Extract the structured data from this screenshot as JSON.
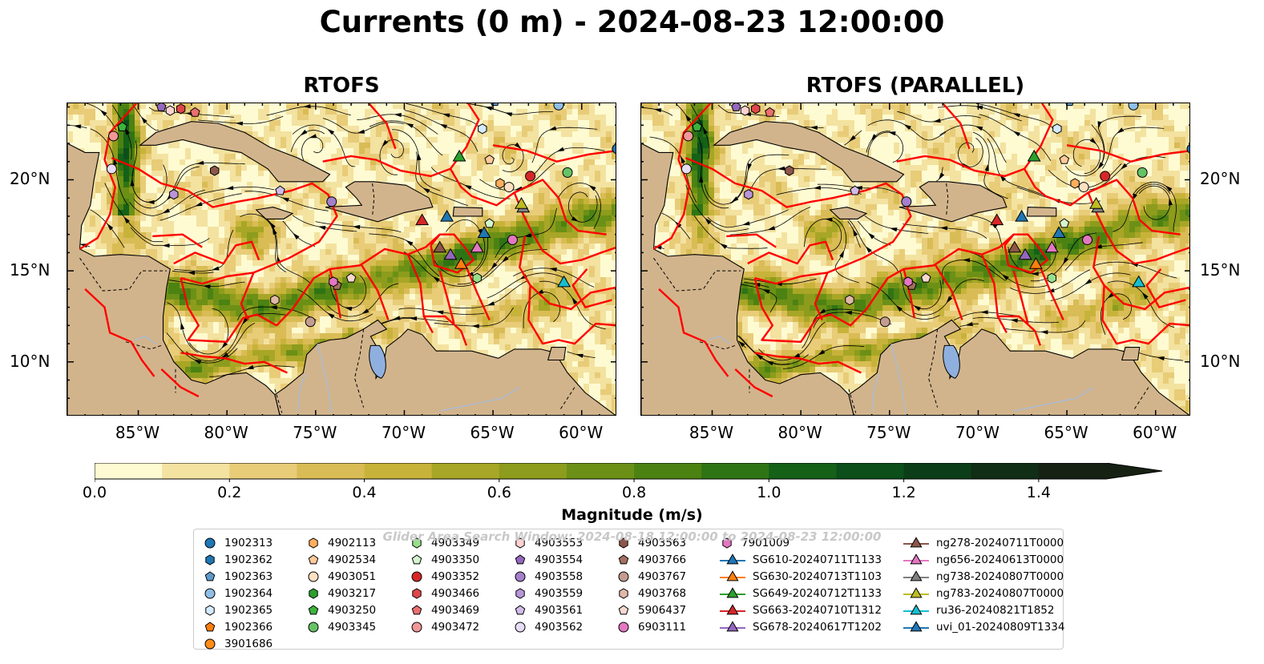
{
  "title": "Currents (0 m) - 2024-08-23 12:00:00",
  "panels": [
    {
      "title": "RTOFS"
    },
    {
      "title": "RTOFS (PARALLEL)"
    }
  ],
  "axes": {
    "lon_ticks": [
      "85°W",
      "80°W",
      "75°W",
      "70°W",
      "65°W",
      "60°W"
    ],
    "lat_ticks": [
      "20°N",
      "15°N",
      "10°N"
    ],
    "lon_range": [
      -89,
      -58
    ],
    "lat_range": [
      7,
      24.2
    ]
  },
  "colorbar": {
    "label": "Magnitude (m/s)",
    "ticks": [
      "0.0",
      "0.2",
      "0.4",
      "0.6",
      "0.8",
      "1.0",
      "1.2",
      "1.4"
    ],
    "range": [
      0,
      1.5
    ],
    "extend": "max"
  },
  "watermark": "Glider Area Search Window: 2024-08-18 12:00:00 to 2024-08-23 12:00:00",
  "colors": {
    "land": "#d2b48c",
    "eez_boundary": "#ff0000",
    "rivers": "#a6bddb",
    "lake": "#8fb0de"
  },
  "legend": {
    "columns": [
      [
        {
          "label": "1902313",
          "marker": "circle",
          "color": "#1f77b4"
        },
        {
          "label": "1902362",
          "marker": "hexagon",
          "color": "#1f77b4"
        },
        {
          "label": "1902363",
          "marker": "pentagon",
          "color": "#5f99cc"
        },
        {
          "label": "1902364",
          "marker": "circle",
          "color": "#8fbfe6"
        },
        {
          "label": "1902365",
          "marker": "hexagon",
          "color": "#d4eaff"
        },
        {
          "label": "1902366",
          "marker": "pentagon",
          "color": "#ff7f0e"
        },
        {
          "label": "3901686",
          "marker": "circle",
          "color": "#ff8c1a"
        }
      ],
      [
        {
          "label": "4902113",
          "marker": "hexagon",
          "color": "#ffae5c"
        },
        {
          "label": "4902534",
          "marker": "pentagon",
          "color": "#ffc999"
        },
        {
          "label": "4903051",
          "marker": "circle",
          "color": "#ffe0c2"
        },
        {
          "label": "4903217",
          "marker": "hexagon",
          "color": "#2ca02c"
        },
        {
          "label": "4903250",
          "marker": "pentagon",
          "color": "#3cb43c"
        },
        {
          "label": "4903345",
          "marker": "circle",
          "color": "#66c266"
        }
      ],
      [
        {
          "label": "4903349",
          "marker": "hexagon",
          "color": "#98df8a"
        },
        {
          "label": "4903350",
          "marker": "pentagon",
          "color": "#d4f5cc"
        },
        {
          "label": "4903352",
          "marker": "circle",
          "color": "#d62728"
        },
        {
          "label": "4903466",
          "marker": "hexagon",
          "color": "#e0474a"
        },
        {
          "label": "4903469",
          "marker": "pentagon",
          "color": "#eb6f70"
        },
        {
          "label": "4903472",
          "marker": "circle",
          "color": "#f29797"
        }
      ],
      [
        {
          "label": "4903553",
          "marker": "hexagon",
          "color": "#ffd1d1"
        },
        {
          "label": "4903554",
          "marker": "pentagon",
          "color": "#9467bd"
        },
        {
          "label": "4903558",
          "marker": "circle",
          "color": "#a47fcc"
        },
        {
          "label": "4903559",
          "marker": "hexagon",
          "color": "#b896d9"
        },
        {
          "label": "4903561",
          "marker": "pentagon",
          "color": "#d1bbe8"
        },
        {
          "label": "4903562",
          "marker": "circle",
          "color": "#e8dcf5"
        }
      ],
      [
        {
          "label": "4903563",
          "marker": "hexagon",
          "color": "#8c564b"
        },
        {
          "label": "4903766",
          "marker": "pentagon",
          "color": "#a4705f"
        },
        {
          "label": "4903767",
          "marker": "circle",
          "color": "#c49c8f"
        },
        {
          "label": "4903768",
          "marker": "hexagon",
          "color": "#e0b8a8"
        },
        {
          "label": "5906437",
          "marker": "pentagon",
          "color": "#f7d9ce"
        },
        {
          "label": "6903111",
          "marker": "circle",
          "color": "#e377c2"
        }
      ],
      [
        {
          "label": "7901009",
          "marker": "hexagon",
          "color": "#e377c2"
        },
        {
          "label": "SG610-20240711T1133",
          "marker": "triangle",
          "color": "#1f77b4"
        },
        {
          "label": "SG630-20240713T1103",
          "marker": "triangle",
          "color": "#ff7f0e"
        },
        {
          "label": "SG649-20240712T1133",
          "marker": "triangle",
          "color": "#2ca02c"
        },
        {
          "label": "SG663-20240710T1312",
          "marker": "triangle",
          "color": "#d62728"
        },
        {
          "label": "SG678-20240617T1202",
          "marker": "triangle",
          "color": "#9467bd"
        }
      ],
      [
        {
          "label": "ng278-20240711T0000",
          "marker": "triangle",
          "color": "#8c564b"
        },
        {
          "label": "ng656-20240613T0000",
          "marker": "triangle",
          "color": "#e377c2"
        },
        {
          "label": "ng738-20240807T0000",
          "marker": "triangle",
          "color": "#7f7f7f"
        },
        {
          "label": "ng783-20240807T0000",
          "marker": "triangle",
          "color": "#bcbd22"
        },
        {
          "label": "ru36-20240821T1852",
          "marker": "triangle",
          "color": "#17becf"
        },
        {
          "label": "uvi_01-20240809T1334",
          "marker": "triangle",
          "color": "#1f77b4"
        }
      ]
    ]
  },
  "map_markers": [
    {
      "label": "1902313",
      "lon": -58.0,
      "lat": 21.7
    },
    {
      "label": "1902363",
      "lon": -64.9,
      "lat": 24.3
    },
    {
      "label": "1902364",
      "lon": -61.3,
      "lat": 24.1
    },
    {
      "label": "1902365",
      "lon": -65.6,
      "lat": 22.8
    },
    {
      "label": "4902534",
      "lon": -65.2,
      "lat": 21.1
    },
    {
      "label": "4903051",
      "lon": -64.1,
      "lat": 19.6
    },
    {
      "label": "4902113",
      "lon": -64.6,
      "lat": 19.8
    },
    {
      "label": "4903250",
      "lon": -85.9,
      "lat": 22.9
    },
    {
      "label": "4903352",
      "lon": -62.9,
      "lat": 20.2
    },
    {
      "label": "4903345",
      "lon": -60.8,
      "lat": 20.4
    },
    {
      "label": "4903350",
      "lon": -65.2,
      "lat": 17.6
    },
    {
      "label": "4903349",
      "lon": -65.9,
      "lat": 14.6
    },
    {
      "label": "4903469",
      "lon": -81.8,
      "lat": 23.7
    },
    {
      "label": "4903472",
      "lon": -86.4,
      "lat": 22.4
    },
    {
      "label": "4903466",
      "lon": -82.6,
      "lat": 23.9
    },
    {
      "label": "4903553",
      "lon": -83.2,
      "lat": 23.8
    },
    {
      "label": "4903554",
      "lon": -83.7,
      "lat": 24.0
    },
    {
      "label": "4903558",
      "lon": -74.1,
      "lat": 18.8
    },
    {
      "label": "4903559",
      "lon": -83.0,
      "lat": 19.2
    },
    {
      "label": "4903561",
      "lon": -77.0,
      "lat": 19.4
    },
    {
      "label": "4903562",
      "lon": -86.5,
      "lat": 20.6
    },
    {
      "label": "4903563",
      "lon": -80.7,
      "lat": 20.5
    },
    {
      "label": "4903766",
      "lon": -73.8,
      "lat": 14.2
    },
    {
      "label": "4903767",
      "lon": -75.3,
      "lat": 12.2
    },
    {
      "label": "4903768",
      "lon": -77.3,
      "lat": 13.4
    },
    {
      "label": "5906437",
      "lon": -73.0,
      "lat": 14.6
    },
    {
      "label": "6903111",
      "lon": -63.9,
      "lat": 16.7
    },
    {
      "label": "7901009",
      "lon": -74.0,
      "lat": 14.4
    },
    {
      "label": "SG610-20240711T1133",
      "lon": -67.6,
      "lat": 18.0
    },
    {
      "label": "SG630-20240713T1103",
      "lon": -66.8,
      "lat": 15.4
    },
    {
      "label": "SG649-20240712T1133",
      "lon": -66.9,
      "lat": 21.3
    },
    {
      "label": "SG663-20240710T1312",
      "lon": -69.0,
      "lat": 17.8
    },
    {
      "label": "SG678-20240617T1202",
      "lon": -67.4,
      "lat": 15.9
    },
    {
      "label": "ng278-20240711T0000",
      "lon": -68.0,
      "lat": 16.3
    },
    {
      "label": "ng656-20240613T0000",
      "lon": -65.9,
      "lat": 16.3
    },
    {
      "label": "ng738-20240807T0000",
      "lon": -63.3,
      "lat": 18.5
    },
    {
      "label": "ng783-20240807T0000",
      "lon": -63.4,
      "lat": 18.7
    },
    {
      "label": "ru36-20240821T1852",
      "lon": -61.0,
      "lat": 14.4
    },
    {
      "label": "uvi_01-20240809T1334",
      "lon": -65.5,
      "lat": 17.1
    }
  ]
}
